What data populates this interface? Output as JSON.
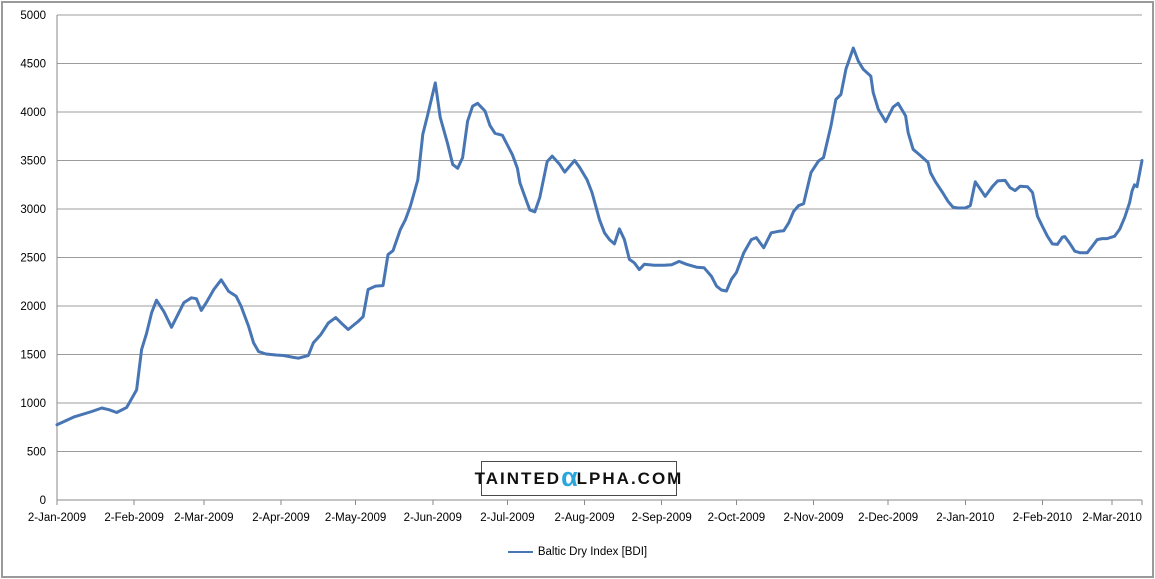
{
  "canvas": {
    "background": "#FEFFFE",
    "border_color": "#9a9a9a"
  },
  "watermark": {
    "part1": "TAINTED",
    "alpha": "α",
    "part2": "LPHA.COM",
    "alpha_color": "#29A6DC",
    "text_color": "#111111"
  },
  "legend": {
    "label": "Baltic Dry Index [BDI]",
    "marker_color": "#4876B4",
    "position": "bottom"
  },
  "chart_data": {
    "type": "line",
    "title": "",
    "xlabel": "",
    "ylabel": "",
    "grid": true,
    "grid_color": "#9c9c9c",
    "axis_color": "#8a8a8a",
    "label_color": "#000000",
    "y_axis": {
      "min": 0,
      "max": 5000,
      "step": 500,
      "tick_values": [
        0,
        500,
        1000,
        1500,
        2000,
        2500,
        3000,
        3500,
        4000,
        4500,
        5000
      ],
      "tick_labels": [
        "0",
        "500",
        "1000",
        "1500",
        "2000",
        "2500",
        "3000",
        "3500",
        "4000",
        "4500",
        "5000"
      ]
    },
    "x_axis": {
      "start_label_date": "2-Jan-2009",
      "end_day": 436,
      "tick_days": [
        0,
        31,
        59,
        90,
        120,
        151,
        181,
        212,
        243,
        273,
        304,
        334,
        365,
        396,
        424
      ],
      "tick_labels": [
        "2-Jan-2009",
        "2-Feb-2009",
        "2-Mar-2009",
        "2-Apr-2009",
        "2-May-2009",
        "2-Jun-2009",
        "2-Jul-2009",
        "2-Aug-2009",
        "2-Sep-2009",
        "2-Oct-2009",
        "2-Nov-2009",
        "2-Dec-2009",
        "2-Jan-2010",
        "2-Feb-2010",
        "2-Mar-2010"
      ]
    },
    "series": [
      {
        "name": "Baltic Dry Index [BDI]",
        "color": "#4876B4",
        "width": 3,
        "x_unit": "days since 2-Jan-2009",
        "points": [
          [
            0,
            775
          ],
          [
            7,
            858
          ],
          [
            14,
            912
          ],
          [
            18,
            948
          ],
          [
            21,
            930
          ],
          [
            24,
            902
          ],
          [
            28,
            955
          ],
          [
            32,
            1135
          ],
          [
            34,
            1550
          ],
          [
            36,
            1720
          ],
          [
            38,
            1930
          ],
          [
            40,
            2060
          ],
          [
            43,
            1940
          ],
          [
            46,
            1780
          ],
          [
            51,
            2035
          ],
          [
            54,
            2085
          ],
          [
            56,
            2075
          ],
          [
            58,
            1955
          ],
          [
            60,
            2035
          ],
          [
            63,
            2170
          ],
          [
            66,
            2270
          ],
          [
            69,
            2150
          ],
          [
            72,
            2100
          ],
          [
            74,
            1995
          ],
          [
            77,
            1790
          ],
          [
            79,
            1620
          ],
          [
            81,
            1530
          ],
          [
            84,
            1505
          ],
          [
            88,
            1495
          ],
          [
            91,
            1490
          ],
          [
            95,
            1470
          ],
          [
            97,
            1462
          ],
          [
            101,
            1490
          ],
          [
            103,
            1620
          ],
          [
            106,
            1705
          ],
          [
            109,
            1825
          ],
          [
            112,
            1880
          ],
          [
            115,
            1805
          ],
          [
            117,
            1758
          ],
          [
            121,
            1840
          ],
          [
            123,
            1890
          ],
          [
            125,
            2170
          ],
          [
            128,
            2205
          ],
          [
            131,
            2210
          ],
          [
            133,
            2530
          ],
          [
            135,
            2570
          ],
          [
            138,
            2790
          ],
          [
            140,
            2890
          ],
          [
            142,
            3030
          ],
          [
            145,
            3300
          ],
          [
            147,
            3770
          ],
          [
            149,
            3975
          ],
          [
            152,
            4300
          ],
          [
            154,
            3945
          ],
          [
            157,
            3670
          ],
          [
            159,
            3460
          ],
          [
            161,
            3420
          ],
          [
            163,
            3530
          ],
          [
            165,
            3905
          ],
          [
            167,
            4060
          ],
          [
            169,
            4090
          ],
          [
            172,
            4010
          ],
          [
            174,
            3860
          ],
          [
            176,
            3780
          ],
          [
            179,
            3760
          ],
          [
            181,
            3660
          ],
          [
            183,
            3560
          ],
          [
            185,
            3420
          ],
          [
            186,
            3270
          ],
          [
            188,
            3130
          ],
          [
            190,
            2990
          ],
          [
            192,
            2970
          ],
          [
            194,
            3120
          ],
          [
            197,
            3490
          ],
          [
            199,
            3545
          ],
          [
            202,
            3460
          ],
          [
            204,
            3380
          ],
          [
            206,
            3440
          ],
          [
            208,
            3500
          ],
          [
            210,
            3430
          ],
          [
            213,
            3300
          ],
          [
            215,
            3170
          ],
          [
            218,
            2890
          ],
          [
            220,
            2755
          ],
          [
            222,
            2685
          ],
          [
            224,
            2640
          ],
          [
            226,
            2795
          ],
          [
            228,
            2685
          ],
          [
            230,
            2480
          ],
          [
            232,
            2445
          ],
          [
            234,
            2375
          ],
          [
            236,
            2430
          ],
          [
            240,
            2420
          ],
          [
            244,
            2420
          ],
          [
            247,
            2425
          ],
          [
            250,
            2460
          ],
          [
            253,
            2430
          ],
          [
            257,
            2400
          ],
          [
            260,
            2395
          ],
          [
            263,
            2305
          ],
          [
            265,
            2205
          ],
          [
            267,
            2165
          ],
          [
            269,
            2155
          ],
          [
            271,
            2275
          ],
          [
            273,
            2345
          ],
          [
            276,
            2550
          ],
          [
            279,
            2685
          ],
          [
            281,
            2705
          ],
          [
            284,
            2600
          ],
          [
            287,
            2755
          ],
          [
            290,
            2770
          ],
          [
            292,
            2775
          ],
          [
            294,
            2855
          ],
          [
            296,
            2975
          ],
          [
            298,
            3035
          ],
          [
            300,
            3055
          ],
          [
            303,
            3375
          ],
          [
            306,
            3495
          ],
          [
            308,
            3530
          ],
          [
            311,
            3855
          ],
          [
            313,
            4130
          ],
          [
            315,
            4180
          ],
          [
            317,
            4440
          ],
          [
            320,
            4660
          ],
          [
            322,
            4525
          ],
          [
            324,
            4440
          ],
          [
            327,
            4370
          ],
          [
            328,
            4200
          ],
          [
            330,
            4030
          ],
          [
            333,
            3900
          ],
          [
            336,
            4050
          ],
          [
            338,
            4090
          ],
          [
            341,
            3960
          ],
          [
            342,
            3790
          ],
          [
            344,
            3615
          ],
          [
            347,
            3550
          ],
          [
            350,
            3480
          ],
          [
            351,
            3375
          ],
          [
            353,
            3280
          ],
          [
            356,
            3165
          ],
          [
            358,
            3080
          ],
          [
            360,
            3020
          ],
          [
            362,
            3010
          ],
          [
            365,
            3010
          ],
          [
            367,
            3035
          ],
          [
            369,
            3280
          ],
          [
            373,
            3130
          ],
          [
            376,
            3235
          ],
          [
            378,
            3290
          ],
          [
            381,
            3295
          ],
          [
            383,
            3220
          ],
          [
            385,
            3190
          ],
          [
            387,
            3235
          ],
          [
            390,
            3230
          ],
          [
            392,
            3170
          ],
          [
            394,
            2925
          ],
          [
            396,
            2820
          ],
          [
            398,
            2720
          ],
          [
            400,
            2640
          ],
          [
            402,
            2635
          ],
          [
            404,
            2710
          ],
          [
            405,
            2715
          ],
          [
            407,
            2645
          ],
          [
            409,
            2565
          ],
          [
            411,
            2550
          ],
          [
            414,
            2550
          ],
          [
            416,
            2615
          ],
          [
            418,
            2685
          ],
          [
            420,
            2695
          ],
          [
            422,
            2695
          ],
          [
            425,
            2720
          ],
          [
            427,
            2790
          ],
          [
            429,
            2910
          ],
          [
            431,
            3065
          ],
          [
            432,
            3185
          ],
          [
            433,
            3250
          ],
          [
            434,
            3230
          ],
          [
            436,
            3500
          ]
        ]
      }
    ]
  }
}
